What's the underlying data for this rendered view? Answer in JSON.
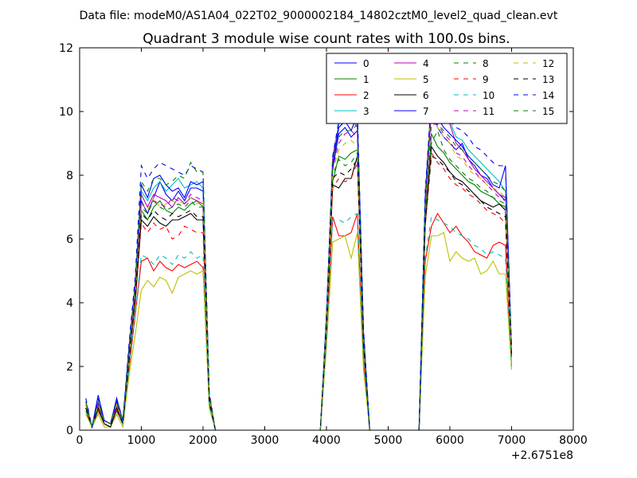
{
  "figure": {
    "suptitle": "Data file: modeM0/AS1A04_022T02_9000002184_14802cztM0_level2_quad_clean.evt",
    "title": "Quadrant 3 module wise count rates with 100.0s bins.",
    "x_offset_label": "+2.6751e8"
  },
  "chart_data": {
    "type": "line",
    "title": "Quadrant 3 module wise count rates with 100.0s bins.",
    "xlabel": "",
    "ylabel": "",
    "xlim": [
      0,
      8000
    ],
    "ylim": [
      0,
      12
    ],
    "x_offset": 267510000,
    "x_offset_label": "+2.6751e8",
    "xticks": [
      0,
      1000,
      2000,
      3000,
      4000,
      5000,
      6000,
      7000,
      8000
    ],
    "yticks": [
      0,
      2,
      4,
      6,
      8,
      10,
      12
    ],
    "grid": false,
    "legend_position": "top-right",
    "x": [
      100,
      200,
      300,
      400,
      500,
      600,
      700,
      800,
      900,
      1000,
      1100,
      1200,
      1300,
      1400,
      1500,
      1600,
      1700,
      1800,
      1900,
      2000,
      2100,
      2200,
      2300,
      2400,
      2500,
      2600,
      2700,
      2800,
      2900,
      3000,
      3100,
      3200,
      3300,
      3400,
      3500,
      3600,
      3700,
      3800,
      3900,
      4000,
      4100,
      4200,
      4300,
      4400,
      4500,
      4600,
      4700,
      4800,
      4900,
      5000,
      5100,
      5200,
      5300,
      5400,
      5500,
      5600,
      5700,
      5800,
      5900,
      6000,
      6100,
      6200,
      6300,
      6400,
      6500,
      6600,
      6700,
      6800,
      6900,
      7000
    ],
    "series": [
      {
        "name": "0",
        "color": "#0000ff",
        "dash": "solid",
        "values": [
          0.9,
          0.1,
          0.9,
          0.3,
          0.2,
          0.9,
          0.3,
          2.5,
          4.5,
          7.2,
          6.8,
          7.3,
          7.8,
          7.4,
          7.2,
          7.5,
          7.2,
          7.6,
          7.6,
          7.5,
          1.1,
          0,
          0,
          0,
          0,
          0,
          0,
          0,
          0,
          0,
          0,
          0,
          0,
          0,
          0,
          0,
          0,
          0,
          0,
          3.5,
          8.2,
          9.3,
          9.5,
          9.2,
          9.4,
          3.0,
          0,
          0,
          0,
          0,
          0,
          0,
          0,
          0,
          0,
          7.0,
          10.2,
          9.5,
          9.2,
          9.0,
          8.8,
          9.0,
          8.5,
          8.3,
          8.0,
          7.9,
          7.6,
          7.4,
          7.2,
          2.6
        ]
      },
      {
        "name": "1",
        "color": "#008000",
        "dash": "solid",
        "values": [
          0.7,
          0.1,
          0.7,
          0.2,
          0.1,
          0.7,
          0.2,
          2.3,
          4.2,
          6.9,
          6.6,
          7.0,
          7.2,
          6.9,
          6.8,
          7.0,
          6.9,
          7.1,
          7.2,
          7.0,
          1.0,
          0,
          0,
          0,
          0,
          0,
          0,
          0,
          0,
          0,
          0,
          0,
          0,
          0,
          0,
          0,
          0,
          0,
          0,
          3.3,
          7.8,
          8.6,
          8.5,
          8.7,
          8.8,
          2.8,
          0,
          0,
          0,
          0,
          0,
          0,
          0,
          0,
          0,
          6.6,
          9.3,
          8.9,
          8.7,
          8.4,
          8.2,
          8.0,
          7.8,
          7.7,
          7.5,
          7.4,
          7.3,
          7.1,
          7.0,
          2.4
        ]
      },
      {
        "name": "2",
        "color": "#ff0000",
        "dash": "solid",
        "values": [
          0.6,
          0.1,
          0.6,
          0.2,
          0.1,
          0.6,
          0.2,
          1.9,
          3.6,
          5.3,
          5.4,
          5.0,
          5.3,
          5.1,
          5.0,
          5.2,
          5.1,
          5.2,
          5.3,
          5.1,
          0.8,
          0,
          0,
          0,
          0,
          0,
          0,
          0,
          0,
          0,
          0,
          0,
          0,
          0,
          0,
          0,
          0,
          0,
          0,
          2.8,
          6.7,
          6.1,
          6.1,
          6.2,
          6.8,
          2.2,
          0,
          0,
          0,
          0,
          0,
          0,
          0,
          0,
          0,
          5.3,
          6.4,
          6.8,
          6.5,
          6.2,
          6.4,
          6.1,
          5.9,
          5.6,
          5.5,
          5.4,
          5.8,
          5.9,
          5.8,
          2.0
        ]
      },
      {
        "name": "3",
        "color": "#00bfbf",
        "dash": "solid",
        "values": [
          0.8,
          0.1,
          0.8,
          0.3,
          0.2,
          0.8,
          0.3,
          2.4,
          4.4,
          7.5,
          7.2,
          7.6,
          7.8,
          7.5,
          7.7,
          7.9,
          7.6,
          7.7,
          7.8,
          7.6,
          1.1,
          0,
          0,
          0,
          0,
          0,
          0,
          0,
          0,
          0,
          0,
          0,
          0,
          0,
          0,
          0,
          0,
          0,
          0,
          3.4,
          8.6,
          9.6,
          9.8,
          9.9,
          9.7,
          3.1,
          0,
          0,
          0,
          0,
          0,
          0,
          0,
          0,
          0,
          7.2,
          10.5,
          10.0,
          9.8,
          9.7,
          9.2,
          9.1,
          8.8,
          8.6,
          8.4,
          8.2,
          8.0,
          7.8,
          7.5,
          2.3
        ]
      },
      {
        "name": "4",
        "color": "#bf00bf",
        "dash": "solid",
        "values": [
          0.8,
          0.1,
          0.8,
          0.3,
          0.2,
          0.8,
          0.3,
          2.4,
          4.3,
          7.4,
          7.0,
          7.4,
          7.3,
          7.2,
          7.0,
          7.3,
          7.1,
          7.3,
          7.2,
          7.1,
          1.0,
          0,
          0,
          0,
          0,
          0,
          0,
          0,
          0,
          0,
          0,
          0,
          0,
          0,
          0,
          0,
          0,
          0,
          0,
          3.4,
          8.5,
          9.5,
          9.7,
          9.8,
          9.5,
          3.0,
          0,
          0,
          0,
          0,
          0,
          0,
          0,
          0,
          0,
          7.0,
          10.1,
          9.9,
          10.0,
          9.6,
          9.0,
          8.8,
          8.5,
          8.2,
          8.0,
          7.8,
          7.6,
          7.4,
          7.3,
          2.3
        ]
      },
      {
        "name": "5",
        "color": "#bfbf00",
        "dash": "solid",
        "values": [
          0.5,
          0.1,
          0.5,
          0.1,
          0.1,
          0.5,
          0.1,
          1.7,
          3.0,
          4.4,
          4.7,
          4.5,
          4.8,
          4.7,
          4.3,
          4.8,
          4.9,
          5.0,
          4.9,
          5.0,
          0.7,
          0,
          0,
          0,
          0,
          0,
          0,
          0,
          0,
          0,
          0,
          0,
          0,
          0,
          0,
          0,
          0,
          0,
          0,
          2.6,
          5.9,
          6.0,
          6.1,
          5.4,
          6.2,
          1.9,
          0,
          0,
          0,
          0,
          0,
          0,
          0,
          0,
          0,
          4.8,
          6.1,
          6.1,
          6.2,
          5.3,
          5.6,
          5.4,
          5.3,
          5.4,
          4.9,
          5.0,
          5.3,
          4.9,
          4.9,
          1.9
        ]
      },
      {
        "name": "6",
        "color": "#000000",
        "dash": "solid",
        "values": [
          0.7,
          0.1,
          0.7,
          0.2,
          0.1,
          0.7,
          0.2,
          2.2,
          4.0,
          6.6,
          6.4,
          6.7,
          6.5,
          6.4,
          6.6,
          6.6,
          6.7,
          6.8,
          6.6,
          6.6,
          0.9,
          0,
          0,
          0,
          0,
          0,
          0,
          0,
          0,
          0,
          0,
          0,
          0,
          0,
          0,
          0,
          0,
          0,
          0,
          3.1,
          7.7,
          7.6,
          7.9,
          7.9,
          8.6,
          2.7,
          0,
          0,
          0,
          0,
          0,
          0,
          0,
          0,
          0,
          6.4,
          8.9,
          8.6,
          8.4,
          8.1,
          7.9,
          7.8,
          7.6,
          7.4,
          7.2,
          7.1,
          7.0,
          7.1,
          6.9,
          2.4
        ]
      },
      {
        "name": "7",
        "color": "#0000ff",
        "dash": "solid",
        "values": [
          0.9,
          0.1,
          1.1,
          0.3,
          0.2,
          1.0,
          0.3,
          2.6,
          4.6,
          7.7,
          7.3,
          7.9,
          8.0,
          7.7,
          7.5,
          7.6,
          7.3,
          7.8,
          7.7,
          7.8,
          1.1,
          0,
          0,
          0,
          0,
          0,
          0,
          0,
          0,
          0,
          0,
          0,
          0,
          0,
          0,
          0,
          0,
          0,
          0,
          3.6,
          8.3,
          9.5,
          9.7,
          9.4,
          9.9,
          3.1,
          0,
          0,
          0,
          0,
          0,
          0,
          0,
          0,
          0,
          7.3,
          10.5,
          9.8,
          9.5,
          9.3,
          9.1,
          8.9,
          8.6,
          8.4,
          8.2,
          8.0,
          7.7,
          7.6,
          8.3,
          2.5
        ]
      },
      {
        "name": "8",
        "color": "#008000",
        "dash": "dashed",
        "values": [
          0.8,
          0.1,
          0.8,
          0.3,
          0.2,
          0.8,
          0.3,
          2.3,
          4.3,
          7.0,
          6.8,
          7.2,
          7.0,
          6.9,
          7.0,
          7.1,
          7.0,
          7.2,
          7.0,
          7.0,
          1.0,
          0,
          0,
          0,
          0,
          0,
          0,
          0,
          0,
          0,
          0,
          0,
          0,
          0,
          0,
          0,
          0,
          0,
          0,
          3.3,
          8.0,
          8.5,
          8.3,
          8.4,
          8.7,
          2.9,
          0,
          0,
          0,
          0,
          0,
          0,
          0,
          0,
          0,
          6.8,
          9.0,
          9.4,
          8.8,
          8.5,
          8.3,
          8.1,
          7.9,
          7.8,
          7.6,
          7.5,
          7.3,
          7.2,
          7.1,
          2.4
        ]
      },
      {
        "name": "9",
        "color": "#ff0000",
        "dash": "dashed",
        "values": [
          0.7,
          0.1,
          0.7,
          0.2,
          0.1,
          0.7,
          0.2,
          2.2,
          4.0,
          6.5,
          6.2,
          6.5,
          6.3,
          6.4,
          6.0,
          6.1,
          6.4,
          6.3,
          6.2,
          6.2,
          0.9,
          0,
          0,
          0,
          0,
          0,
          0,
          0,
          0,
          0,
          0,
          0,
          0,
          0,
          0,
          0,
          0,
          0,
          0,
          3.1,
          7.6,
          7.9,
          7.8,
          7.9,
          8.4,
          2.7,
          0,
          0,
          0,
          0,
          0,
          0,
          0,
          0,
          0,
          6.4,
          8.7,
          8.4,
          8.2,
          7.9,
          7.7,
          7.6,
          7.4,
          7.3,
          7.1,
          6.9,
          6.8,
          6.7,
          6.5,
          2.3
        ]
      },
      {
        "name": "10",
        "color": "#00bfbf",
        "dash": "dashed",
        "values": [
          0.6,
          0.1,
          0.6,
          0.2,
          0.1,
          0.6,
          0.2,
          1.9,
          3.6,
          5.5,
          5.4,
          5.2,
          5.5,
          5.4,
          5.2,
          5.5,
          5.4,
          5.6,
          5.4,
          5.5,
          0.8,
          0,
          0,
          0,
          0,
          0,
          0,
          0,
          0,
          0,
          0,
          0,
          0,
          0,
          0,
          0,
          0,
          0,
          0,
          2.8,
          6.6,
          6.6,
          6.5,
          6.7,
          6.8,
          2.2,
          0,
          0,
          0,
          0,
          0,
          0,
          0,
          0,
          0,
          5.4,
          6.7,
          6.6,
          6.5,
          6.4,
          6.2,
          6.1,
          6.0,
          5.8,
          5.7,
          5.5,
          5.6,
          5.5,
          5.4,
          2.0
        ]
      },
      {
        "name": "11",
        "color": "#bf00bf",
        "dash": "dashed",
        "values": [
          0.8,
          0.1,
          0.8,
          0.3,
          0.2,
          0.8,
          0.3,
          2.3,
          4.3,
          7.1,
          6.9,
          7.2,
          7.1,
          7.0,
          7.3,
          7.2,
          7.1,
          7.4,
          7.3,
          7.2,
          1.0,
          0,
          0,
          0,
          0,
          0,
          0,
          0,
          0,
          0,
          0,
          0,
          0,
          0,
          0,
          0,
          0,
          0,
          0,
          3.4,
          8.2,
          9.0,
          9.3,
          9.4,
          9.2,
          2.9,
          0,
          0,
          0,
          0,
          0,
          0,
          0,
          0,
          0,
          6.9,
          9.6,
          9.6,
          9.3,
          9.1,
          8.7,
          8.6,
          8.3,
          8.1,
          7.9,
          7.7,
          7.5,
          7.3,
          7.2,
          2.3
        ]
      },
      {
        "name": "12",
        "color": "#bfbf00",
        "dash": "dashed",
        "values": [
          0.8,
          0.1,
          0.8,
          0.3,
          0.2,
          0.8,
          0.3,
          2.3,
          4.3,
          7.1,
          6.9,
          7.3,
          7.0,
          7.1,
          7.2,
          7.1,
          7.2,
          7.3,
          7.1,
          7.2,
          1.0,
          0,
          0,
          0,
          0,
          0,
          0,
          0,
          0,
          0,
          0,
          0,
          0,
          0,
          0,
          0,
          0,
          0,
          0,
          3.3,
          8.1,
          8.8,
          9.0,
          9.1,
          8.9,
          2.8,
          0,
          0,
          0,
          0,
          0,
          0,
          0,
          0,
          0,
          6.8,
          10.8,
          9.5,
          9.2,
          9.0,
          8.6,
          8.5,
          8.2,
          8.0,
          7.9,
          7.7,
          7.6,
          7.5,
          7.3,
          2.4
        ]
      },
      {
        "name": "13",
        "color": "#000000",
        "dash": "dashed",
        "values": [
          0.7,
          0.1,
          0.7,
          0.2,
          0.1,
          0.7,
          0.2,
          2.2,
          4.1,
          6.8,
          6.6,
          6.9,
          6.7,
          6.6,
          6.8,
          6.7,
          6.8,
          6.9,
          6.7,
          6.7,
          0.9,
          0,
          0,
          0,
          0,
          0,
          0,
          0,
          0,
          0,
          0,
          0,
          0,
          0,
          0,
          0,
          0,
          0,
          0,
          3.2,
          7.9,
          8.1,
          8.0,
          8.2,
          8.5,
          2.7,
          0,
          0,
          0,
          0,
          0,
          0,
          0,
          0,
          0,
          6.5,
          8.6,
          8.5,
          8.3,
          8.1,
          7.8,
          7.7,
          7.5,
          7.4,
          7.2,
          7.0,
          6.9,
          6.8,
          6.7,
          2.4
        ]
      },
      {
        "name": "14",
        "color": "#0000ff",
        "dash": "dashed",
        "values": [
          1.0,
          0.1,
          1.0,
          0.3,
          0.2,
          1.0,
          0.3,
          2.7,
          4.8,
          8.3,
          7.9,
          8.2,
          8.4,
          8.3,
          8.2,
          8.1,
          8.0,
          8.3,
          8.2,
          8.1,
          1.2,
          0,
          0,
          0,
          0,
          0,
          0,
          0,
          0,
          0,
          0,
          0,
          0,
          0,
          0,
          0,
          0,
          0,
          0,
          3.7,
          8.6,
          9.7,
          10.1,
          10.0,
          10.0,
          3.2,
          0,
          0,
          0,
          0,
          0,
          0,
          0,
          0,
          0,
          7.5,
          10.4,
          10.0,
          9.9,
          9.7,
          9.5,
          9.4,
          9.2,
          8.9,
          8.8,
          8.6,
          8.4,
          8.3,
          8.3,
          2.6
        ]
      },
      {
        "name": "15",
        "color": "#008000",
        "dash": "dashed",
        "values": [
          0.9,
          0.1,
          0.9,
          0.3,
          0.2,
          0.9,
          0.3,
          2.5,
          4.6,
          7.8,
          7.5,
          7.9,
          7.9,
          7.7,
          7.8,
          8.0,
          7.9,
          8.4,
          8.1,
          8.1,
          1.1,
          0,
          0,
          0,
          0,
          0,
          0,
          0,
          0,
          0,
          0,
          0,
          0,
          0,
          0,
          0,
          0,
          0,
          0,
          3.5,
          8.4,
          9.2,
          9.4,
          9.4,
          9.6,
          3.0,
          0,
          0,
          0,
          0,
          0,
          0,
          0,
          0,
          0,
          7.1,
          10.0,
          9.6,
          9.4,
          9.2,
          8.9,
          8.8,
          8.6,
          8.4,
          8.2,
          8.0,
          7.8,
          7.7,
          7.5,
          2.5
        ]
      }
    ]
  }
}
